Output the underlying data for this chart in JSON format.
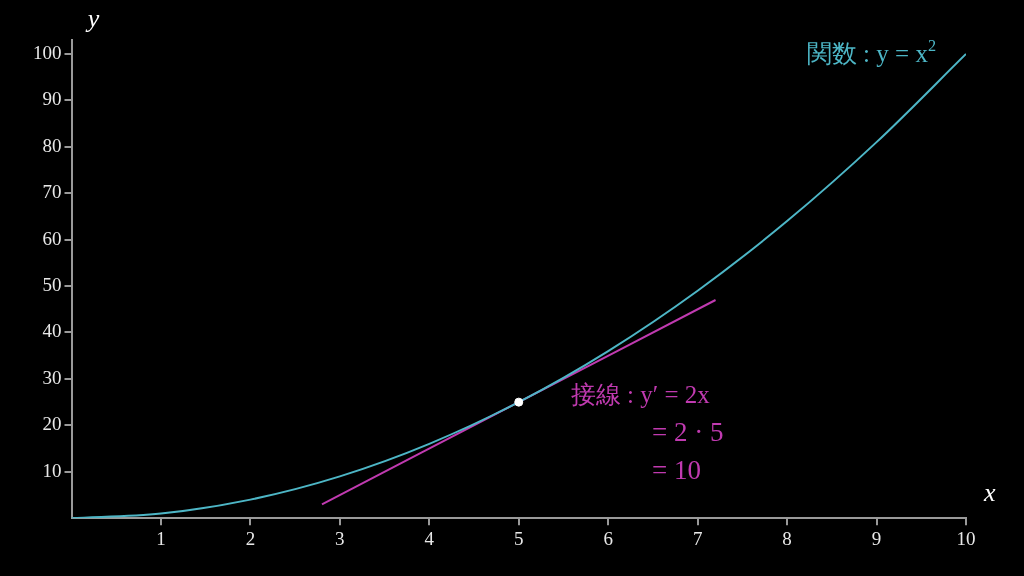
{
  "chart_data": {
    "type": "line",
    "xlabel": "x",
    "ylabel": "y",
    "xlim": [
      0,
      10
    ],
    "ylim": [
      0,
      103
    ],
    "xticks": [
      1,
      2,
      3,
      4,
      5,
      6,
      7,
      8,
      9,
      10
    ],
    "yticks": [
      10,
      20,
      30,
      40,
      50,
      60,
      70,
      80,
      90,
      100
    ],
    "grid": false,
    "legend": false,
    "marker": "none",
    "line_style": "solid",
    "series": [
      {
        "name": "関数 : y = x$^{2}$",
        "color": "#4db6c6",
        "x": [
          0,
          1,
          2,
          3,
          4,
          5,
          6,
          7,
          8,
          9,
          10
        ],
        "values": [
          0,
          1,
          4,
          9,
          16,
          25,
          36,
          49,
          64,
          81,
          100
        ]
      },
      {
        "name": "接線 : y′ = 2x",
        "color": "#c03ab0",
        "x": [
          2.8,
          5,
          7.2
        ],
        "values": [
          3,
          25,
          47
        ]
      },
      {
        "type": "scatter",
        "color": "#ffffff",
        "x": [
          5
        ],
        "values": [
          25
        ],
        "marker": "circle"
      }
    ],
    "annotations": [
      "= 2 · 5",
      "= 10"
    ]
  }
}
